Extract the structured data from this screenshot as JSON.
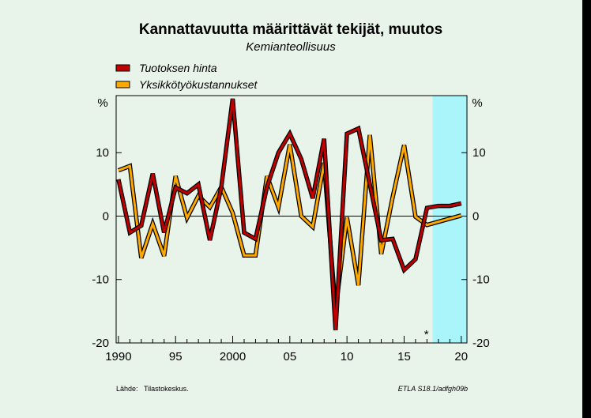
{
  "chart_data": {
    "type": "line",
    "title": "Kannattavuutta määrittävät tekijät, muutos",
    "subtitle": "Kemianteollisuus",
    "ylabel_left": "%",
    "ylabel_right": "%",
    "ylim": [
      -20,
      19
    ],
    "yticks": [
      "-20",
      "-10",
      "0",
      "10"
    ],
    "xticks": [
      "1990",
      "95",
      "2000",
      "05",
      "10",
      "15",
      "20"
    ],
    "xlim": [
      1989.8,
      2020.5
    ],
    "forecast_start": 2017.5,
    "forecast_marker": "*",
    "forecast_color": "#aaf5fa",
    "x": [
      1990,
      1991,
      1992,
      1993,
      1994,
      1995,
      1996,
      1997,
      1998,
      1999,
      2000,
      2001,
      2002,
      2003,
      2004,
      2005,
      2006,
      2007,
      2008,
      2009,
      2010,
      2011,
      2012,
      2013,
      2014,
      2015,
      2016,
      2017,
      2018,
      2019,
      2020
    ],
    "series": [
      {
        "name": "Tuotoksen hinta",
        "color": "#c00000",
        "values": [
          5.8,
          -2.6,
          -1.5,
          6.7,
          -2.6,
          4.5,
          3.6,
          5.0,
          -3.8,
          4.6,
          18.5,
          -2.6,
          -3.6,
          4.6,
          10.0,
          13.0,
          9.0,
          2.8,
          12.2,
          -18.0,
          13.0,
          13.8,
          5.0,
          -3.8,
          -3.6,
          -8.5,
          -6.8,
          1.3,
          1.6,
          1.6,
          2.0
        ]
      },
      {
        "name": "Yksikkötyökustannukset",
        "color": "#ffa800",
        "values": [
          7.2,
          7.9,
          -6.6,
          -1.2,
          -6.3,
          6.3,
          -0.3,
          3.2,
          1.4,
          4.6,
          0.5,
          -6.2,
          -6.2,
          6.3,
          1.4,
          11.3,
          0.0,
          -1.7,
          8.4,
          -14.8,
          -0.2,
          -10.9,
          12.8,
          -6.0,
          3.0,
          11.2,
          -0.1,
          -1.4,
          -0.9,
          -0.4,
          0.1
        ]
      }
    ],
    "legend": [
      "Tuotoksen hinta",
      "Yksikkötyökustannukset"
    ],
    "grid": false
  },
  "footer": {
    "source_label": "Lähde:",
    "source_value": "Tilastokeskus.",
    "credit": "ETLA S18.1/adfgh09b"
  }
}
